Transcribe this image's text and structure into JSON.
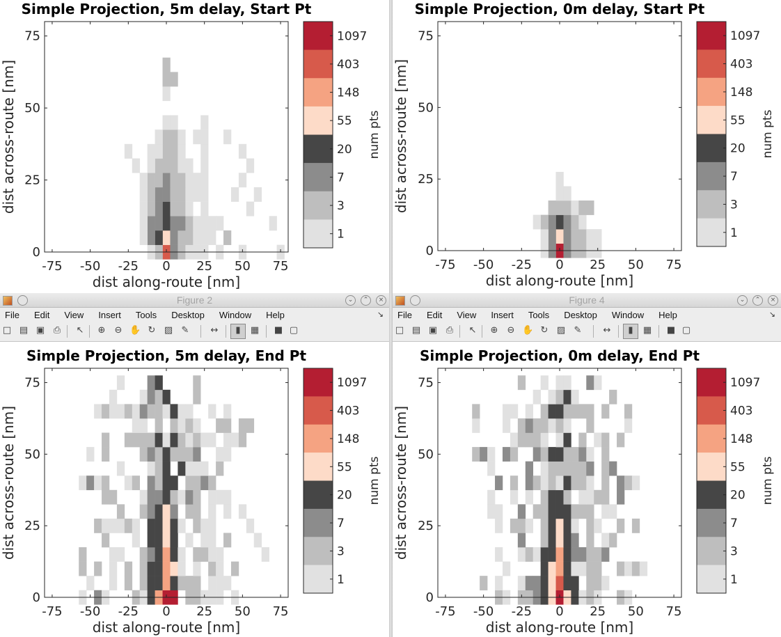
{
  "windows": [
    {
      "title": "",
      "has_chrome": false
    },
    {
      "title": "",
      "has_chrome": false
    },
    {
      "title": "Figure 2",
      "has_chrome": true
    },
    {
      "title": "Figure 4",
      "has_chrome": true
    }
  ],
  "menu": [
    "File",
    "Edit",
    "View",
    "Insert",
    "Tools",
    "Desktop",
    "Window",
    "Help"
  ],
  "toolbar_icons": [
    "new-icon",
    "open-icon",
    "save-icon",
    "print-icon",
    "pointer-icon",
    "zoom-in-icon",
    "zoom-out-icon",
    "pan-icon",
    "rotate-icon",
    "data-cursor-icon",
    "brush-icon",
    "link-icon",
    "colorbar-icon",
    "legend-icon",
    "hide-tools-icon",
    "dock-icon"
  ],
  "colorbar": {
    "label": "num pts",
    "tick_labels": [
      "1097",
      "403",
      "148",
      "55",
      "20",
      "7",
      "3",
      "1"
    ],
    "colors": [
      "#b41e32",
      "#d75a4b",
      "#f5a382",
      "#fddbc8",
      "#464646",
      "#8c8c8c",
      "#bebebe",
      "#e1e1e1"
    ]
  },
  "chart_data": [
    {
      "type": "heatmap",
      "title": "Simple Projection, 5m delay, Start Pt",
      "xlabel": "dist along-route [nm]",
      "ylabel": "dist across-route [nm]",
      "xlim": [
        -80,
        80
      ],
      "ylim": [
        0,
        80
      ],
      "xticks": [
        -75,
        -50,
        -25,
        0,
        25,
        50,
        75
      ],
      "yticks": [
        0,
        25,
        50,
        75
      ],
      "bin_size_nm": 5,
      "color_levels": [
        "1",
        "3",
        "7",
        "20",
        "55",
        "148",
        "403",
        "1097"
      ],
      "cells": [
        [
          0,
          0,
          7
        ],
        [
          5,
          0,
          3
        ],
        [
          -5,
          0,
          2
        ],
        [
          -10,
          0,
          1
        ],
        [
          10,
          0,
          2
        ],
        [
          15,
          0,
          1
        ],
        [
          20,
          0,
          1
        ],
        [
          25,
          0,
          1
        ],
        [
          35,
          0,
          1
        ],
        [
          50,
          0,
          1
        ],
        [
          75,
          0,
          1
        ],
        [
          0,
          5,
          5
        ],
        [
          -5,
          5,
          4
        ],
        [
          5,
          5,
          3
        ],
        [
          -10,
          5,
          3
        ],
        [
          10,
          5,
          2
        ],
        [
          15,
          5,
          2
        ],
        [
          20,
          5,
          1
        ],
        [
          25,
          5,
          1
        ],
        [
          30,
          5,
          1
        ],
        [
          40,
          5,
          2
        ],
        [
          -15,
          5,
          1
        ],
        [
          0,
          10,
          4
        ],
        [
          -5,
          10,
          3
        ],
        [
          5,
          10,
          3
        ],
        [
          -10,
          10,
          3
        ],
        [
          10,
          10,
          3
        ],
        [
          15,
          10,
          2
        ],
        [
          20,
          10,
          1
        ],
        [
          25,
          10,
          1
        ],
        [
          30,
          10,
          1
        ],
        [
          -15,
          10,
          1
        ],
        [
          35,
          10,
          1
        ],
        [
          70,
          10,
          1
        ],
        [
          0,
          15,
          4
        ],
        [
          -5,
          15,
          3
        ],
        [
          5,
          15,
          2
        ],
        [
          -10,
          15,
          2
        ],
        [
          10,
          15,
          2
        ],
        [
          15,
          15,
          1
        ],
        [
          25,
          15,
          1
        ],
        [
          -15,
          15,
          1
        ],
        [
          55,
          15,
          1
        ],
        [
          0,
          20,
          3
        ],
        [
          -5,
          20,
          3
        ],
        [
          5,
          20,
          2
        ],
        [
          -10,
          20,
          2
        ],
        [
          10,
          20,
          2
        ],
        [
          15,
          20,
          1
        ],
        [
          20,
          20,
          1
        ],
        [
          -15,
          20,
          1
        ],
        [
          25,
          20,
          1
        ],
        [
          45,
          20,
          1
        ],
        [
          60,
          20,
          1
        ],
        [
          0,
          25,
          3
        ],
        [
          -5,
          25,
          2
        ],
        [
          5,
          25,
          2
        ],
        [
          -10,
          25,
          2
        ],
        [
          10,
          25,
          2
        ],
        [
          15,
          25,
          1
        ],
        [
          20,
          25,
          1
        ],
        [
          25,
          25,
          1
        ],
        [
          -15,
          25,
          1
        ],
        [
          50,
          25,
          1
        ],
        [
          0,
          30,
          2
        ],
        [
          -5,
          30,
          2
        ],
        [
          5,
          30,
          2
        ],
        [
          -10,
          30,
          1
        ],
        [
          10,
          30,
          1
        ],
        [
          15,
          30,
          1
        ],
        [
          25,
          30,
          1
        ],
        [
          55,
          30,
          1
        ],
        [
          -20,
          30,
          1
        ],
        [
          0,
          35,
          2
        ],
        [
          5,
          35,
          2
        ],
        [
          -5,
          35,
          1
        ],
        [
          10,
          35,
          1
        ],
        [
          -10,
          35,
          1
        ],
        [
          25,
          35,
          1
        ],
        [
          -25,
          35,
          1
        ],
        [
          50,
          35,
          1
        ],
        [
          0,
          40,
          2
        ],
        [
          5,
          40,
          2
        ],
        [
          10,
          40,
          1
        ],
        [
          -5,
          40,
          1
        ],
        [
          20,
          40,
          1
        ],
        [
          25,
          40,
          1
        ],
        [
          40,
          40,
          1
        ],
        [
          0,
          45,
          1
        ],
        [
          5,
          45,
          1
        ],
        [
          25,
          45,
          1
        ],
        [
          0,
          55,
          1
        ],
        [
          0,
          60,
          2
        ],
        [
          5,
          60,
          2
        ],
        [
          0,
          65,
          2
        ]
      ]
    },
    {
      "type": "heatmap",
      "title": "Simple Projection, 0m delay, Start Pt",
      "xlabel": "dist along-route [nm]",
      "ylabel": "dist across-route [nm]",
      "xlim": [
        -80,
        80
      ],
      "ylim": [
        0,
        80
      ],
      "xticks": [
        -75,
        -50,
        -25,
        0,
        25,
        50,
        75
      ],
      "yticks": [
        0,
        25,
        50,
        75
      ],
      "bin_size_nm": 5,
      "color_levels": [
        "1",
        "3",
        "7",
        "20",
        "55",
        "148",
        "403",
        "1097"
      ],
      "cells": [
        [
          0,
          0,
          8
        ],
        [
          -5,
          0,
          3
        ],
        [
          5,
          0,
          3
        ],
        [
          10,
          0,
          2
        ],
        [
          15,
          0,
          2
        ],
        [
          20,
          0,
          1
        ],
        [
          -10,
          0,
          1
        ],
        [
          25,
          0,
          1
        ],
        [
          0,
          5,
          5
        ],
        [
          -5,
          5,
          3
        ],
        [
          5,
          5,
          3
        ],
        [
          10,
          5,
          2
        ],
        [
          15,
          5,
          2
        ],
        [
          20,
          5,
          1
        ],
        [
          -10,
          5,
          1
        ],
        [
          25,
          5,
          1
        ],
        [
          0,
          10,
          4
        ],
        [
          -5,
          10,
          3
        ],
        [
          5,
          10,
          3
        ],
        [
          10,
          10,
          2
        ],
        [
          -10,
          10,
          2
        ],
        [
          15,
          10,
          1
        ],
        [
          -15,
          10,
          1
        ],
        [
          0,
          15,
          2
        ],
        [
          5,
          15,
          2
        ],
        [
          -5,
          15,
          2
        ],
        [
          10,
          15,
          1
        ],
        [
          15,
          15,
          2
        ],
        [
          20,
          15,
          2
        ],
        [
          0,
          20,
          1
        ],
        [
          5,
          20,
          1
        ],
        [
          0,
          25,
          1
        ]
      ]
    },
    {
      "type": "heatmap",
      "title": "Simple Projection, 5m delay, End Pt",
      "xlabel": "dist along-route [nm]",
      "ylabel": "dist across-route [nm]",
      "xlim": [
        -80,
        80
      ],
      "ylim": [
        0,
        80
      ],
      "xticks": [
        -75,
        -50,
        -25,
        0,
        25,
        50,
        75
      ],
      "yticks": [
        0,
        25,
        50,
        75
      ],
      "bin_size_nm": 5,
      "color_levels": [
        "1",
        "3",
        "7",
        "20",
        "55",
        "148",
        "403",
        "1097"
      ],
      "envelope": [
        [
          -5,
          55
        ],
        [
          -10,
          68
        ],
        [
          -20,
          76
        ],
        [
          -30,
          78
        ],
        [
          -40,
          80
        ],
        [
          -50,
          65
        ]
      ],
      "spread_x": [
        -55,
        75
      ],
      "core": [
        [
          0,
          0,
          8
        ],
        [
          -5,
          0,
          6
        ],
        [
          5,
          0,
          8
        ],
        [
          0,
          5,
          6
        ],
        [
          0,
          10,
          6
        ],
        [
          0,
          15,
          6
        ],
        [
          0,
          20,
          5
        ],
        [
          0,
          25,
          5
        ],
        [
          0,
          30,
          5
        ],
        [
          0,
          35,
          4
        ],
        [
          0,
          40,
          4
        ],
        [
          0,
          45,
          4
        ],
        [
          0,
          50,
          4
        ],
        [
          -5,
          5,
          4
        ],
        [
          -5,
          10,
          4
        ],
        [
          -5,
          15,
          4
        ],
        [
          -5,
          20,
          4
        ],
        [
          -5,
          25,
          4
        ],
        [
          -5,
          30,
          4
        ],
        [
          -5,
          35,
          3
        ],
        [
          5,
          5,
          4
        ],
        [
          5,
          10,
          5
        ],
        [
          5,
          15,
          4
        ],
        [
          5,
          20,
          4
        ],
        [
          5,
          25,
          4
        ],
        [
          5,
          30,
          3
        ],
        [
          -10,
          0,
          4
        ],
        [
          -10,
          5,
          4
        ],
        [
          -10,
          10,
          4
        ],
        [
          -10,
          15,
          3
        ],
        [
          -10,
          20,
          4
        ],
        [
          -10,
          25,
          4
        ],
        [
          -10,
          30,
          3
        ]
      ]
    },
    {
      "type": "heatmap",
      "title": "Simple Projection, 0m delay, End Pt",
      "xlabel": "dist along-route [nm]",
      "ylabel": "dist across-route [nm]",
      "xlim": [
        -80,
        80
      ],
      "ylim": [
        0,
        80
      ],
      "xticks": [
        -75,
        -50,
        -25,
        0,
        25,
        50,
        75
      ],
      "yticks": [
        0,
        25,
        50,
        75
      ],
      "bin_size_nm": 5,
      "color_levels": [
        "1",
        "3",
        "7",
        "20",
        "55",
        "148",
        "403",
        "1097"
      ],
      "spread_x": [
        -55,
        70
      ],
      "core": [
        [
          0,
          0,
          8
        ],
        [
          0,
          5,
          7
        ],
        [
          0,
          10,
          6
        ],
        [
          0,
          15,
          6
        ],
        [
          0,
          20,
          5
        ],
        [
          0,
          25,
          5
        ],
        [
          0,
          30,
          4
        ],
        [
          -5,
          0,
          5
        ],
        [
          -5,
          5,
          5
        ],
        [
          -5,
          10,
          5
        ],
        [
          -5,
          15,
          4
        ],
        [
          -5,
          20,
          4
        ],
        [
          -5,
          25,
          4
        ],
        [
          -5,
          30,
          4
        ],
        [
          -5,
          35,
          4
        ],
        [
          5,
          0,
          5
        ],
        [
          5,
          5,
          4
        ],
        [
          5,
          10,
          4
        ],
        [
          5,
          15,
          4
        ],
        [
          5,
          20,
          4
        ],
        [
          5,
          25,
          4
        ],
        [
          5,
          30,
          4
        ],
        [
          -10,
          0,
          4
        ],
        [
          -10,
          5,
          4
        ],
        [
          -10,
          10,
          4
        ],
        [
          -10,
          15,
          4
        ],
        [
          10,
          0,
          4
        ],
        [
          10,
          5,
          4
        ]
      ]
    }
  ]
}
